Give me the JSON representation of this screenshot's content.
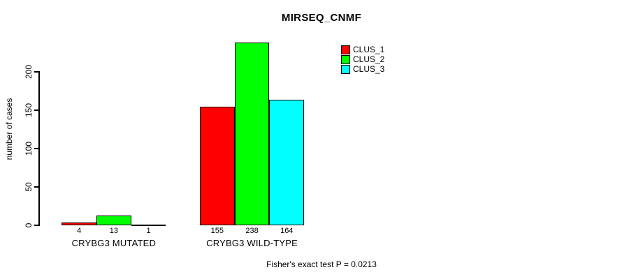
{
  "chart_data": {
    "type": "bar",
    "title": "MIRSEQ_CNMF",
    "xlabel": "",
    "ylabel": "number of cases",
    "categories": [
      "CRYBG3 MUTATED",
      "CRYBG3 WILD-TYPE"
    ],
    "series": [
      {
        "name": "CLUS_1",
        "color": "#ff0000",
        "values": [
          4,
          155
        ]
      },
      {
        "name": "CLUS_2",
        "color": "#00ff00",
        "values": [
          13,
          238
        ]
      },
      {
        "name": "CLUS_3",
        "color": "#00ffff",
        "values": [
          1,
          164
        ]
      }
    ],
    "yticks": [
      "0",
      "50",
      "100",
      "150",
      "200"
    ],
    "ylim": [
      0,
      200
    ],
    "grid": false,
    "bar_borders": true,
    "bar_value_labels_shown": true,
    "legend_position": "top-right",
    "legend_entries": [
      "CLUS_1",
      "CLUS_2",
      "CLUS_3"
    ],
    "annotation": "Fisher's exact test P = 0.0213",
    "axis_color": "#000000",
    "text_color": "#000000",
    "background_color": "#ffffff"
  }
}
